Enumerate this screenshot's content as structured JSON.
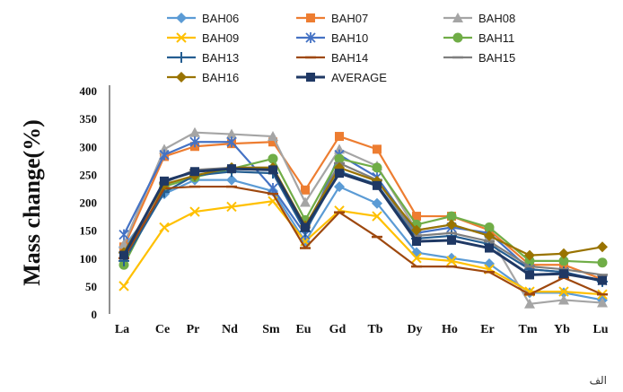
{
  "caption": "الف",
  "chart_data": {
    "type": "line",
    "ylabel": "Mass change(%)",
    "xlabel": "",
    "ylim": [
      0,
      400
    ],
    "yticks": [
      0,
      50,
      100,
      150,
      200,
      250,
      300,
      350,
      400
    ],
    "categories": [
      "La",
      "Ce",
      "Pr",
      "Nd",
      "Sm",
      "Eu",
      "Gd",
      "Tb",
      "Dy",
      "Ho",
      "Er",
      "Tm",
      "Yb",
      "Lu"
    ],
    "grid": false,
    "legend_position": "top",
    "series": [
      {
        "name": "BAH06",
        "color": "#5b9bd5",
        "marker": "diamond",
        "values": [
          120,
          215,
          240,
          240,
          220,
          130,
          228,
          198,
          110,
          100,
          90,
          38,
          38,
          25
        ]
      },
      {
        "name": "BAH07",
        "color": "#ed7d31",
        "marker": "square",
        "values": [
          120,
          282,
          300,
          305,
          308,
          222,
          318,
          295,
          175,
          175,
          150,
          88,
          88,
          62
        ]
      },
      {
        "name": "BAH08",
        "color": "#a5a5a5",
        "marker": "triangle",
        "values": [
          125,
          295,
          325,
          322,
          318,
          200,
          295,
          265,
          150,
          160,
          140,
          18,
          25,
          20
        ]
      },
      {
        "name": "BAH09",
        "color": "#ffc000",
        "marker": "x",
        "values": [
          50,
          155,
          183,
          192,
          202,
          130,
          185,
          175,
          100,
          95,
          80,
          40,
          40,
          35
        ]
      },
      {
        "name": "BAH10",
        "color": "#4472c4",
        "marker": "star",
        "values": [
          142,
          285,
          308,
          308,
          225,
          142,
          285,
          245,
          145,
          155,
          145,
          80,
          75,
          60
        ]
      },
      {
        "name": "BAH11",
        "color": "#70ad47",
        "marker": "circle",
        "values": [
          88,
          228,
          245,
          260,
          278,
          168,
          278,
          262,
          160,
          175,
          155,
          95,
          95,
          92
        ]
      },
      {
        "name": "BAH13",
        "color": "#255e91",
        "marker": "plus",
        "values": [
          95,
          218,
          248,
          255,
          252,
          148,
          255,
          232,
          135,
          140,
          125,
          80,
          75,
          58
        ]
      },
      {
        "name": "BAH14",
        "color": "#9e480e",
        "marker": "dash",
        "values": [
          100,
          225,
          228,
          228,
          215,
          118,
          182,
          138,
          85,
          85,
          75,
          35,
          65,
          35
        ]
      },
      {
        "name": "BAH15",
        "color": "#7f7f7f",
        "marker": "dash",
        "values": [
          110,
          235,
          258,
          262,
          262,
          155,
          270,
          240,
          140,
          145,
          130,
          85,
          80,
          70
        ]
      },
      {
        "name": "BAH16",
        "color": "#997300",
        "marker": "diamond",
        "values": [
          110,
          232,
          248,
          262,
          262,
          158,
          262,
          238,
          150,
          160,
          140,
          105,
          108,
          120
        ]
      },
      {
        "name": "AVERAGE",
        "color": "#1f3864",
        "marker": "square",
        "values": [
          105,
          238,
          255,
          260,
          258,
          155,
          252,
          230,
          130,
          132,
          118,
          70,
          72,
          60
        ]
      }
    ]
  }
}
